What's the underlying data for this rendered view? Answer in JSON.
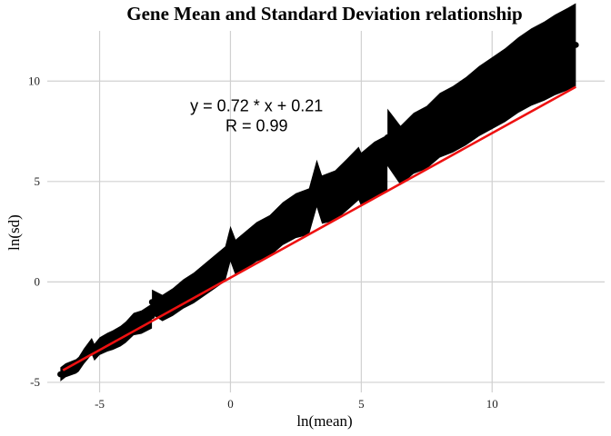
{
  "chart_data": {
    "type": "scatter",
    "title": "Gene Mean and Standard Deviation relationship",
    "xlabel": "ln(mean)",
    "ylabel": "ln(sd)",
    "xlim": [
      -7,
      14.3
    ],
    "ylim": [
      -5.5,
      12.5
    ],
    "x_ticks": [
      -5,
      0,
      5,
      10
    ],
    "y_ticks": [
      -5,
      0,
      5,
      10
    ],
    "grid": true,
    "legend": "none",
    "annotation": {
      "line1": "y = 0.72 * x + 0.21",
      "line2": "R = 0.99",
      "x": 1,
      "y": 8.4
    },
    "fit_line": {
      "slope": 0.72,
      "intercept": 0.21,
      "x_range": [
        -6.4,
        13.2
      ],
      "color": "#ee1111"
    },
    "point_color": "#000000",
    "points": [
      [
        -6.5,
        -4.6
      ],
      [
        -6.3,
        -4.4
      ],
      [
        -5.9,
        -4.2
      ],
      [
        -5.8,
        -4.1
      ],
      [
        -5.6,
        -3.7
      ],
      [
        -5.2,
        -3.5
      ],
      [
        -5.0,
        -3.2
      ],
      [
        -4.7,
        -3.0
      ],
      [
        -4.5,
        -2.9
      ],
      [
        -4.2,
        -2.7
      ],
      [
        -4.0,
        -2.5
      ],
      [
        -3.7,
        -2.1
      ],
      [
        -3.4,
        -2.0
      ],
      [
        -3.0,
        -1.7
      ],
      [
        -2.6,
        -1.3
      ],
      [
        -2.2,
        -1.0
      ],
      [
        -1.8,
        -0.6
      ],
      [
        -1.4,
        -0.3
      ],
      [
        -1.0,
        0.1
      ],
      [
        -0.6,
        0.5
      ],
      [
        -0.2,
        0.9
      ],
      [
        0.2,
        1.2
      ],
      [
        0.6,
        1.6
      ],
      [
        1.0,
        2.0
      ],
      [
        1.5,
        2.3
      ],
      [
        2.0,
        2.9
      ],
      [
        2.5,
        3.3
      ],
      [
        3.0,
        3.5
      ],
      [
        3.5,
        4.1
      ],
      [
        4.0,
        4.3
      ],
      [
        4.5,
        4.9
      ],
      [
        5.0,
        5.1
      ],
      [
        5.5,
        5.6
      ],
      [
        6.0,
        5.9
      ],
      [
        6.5,
        6.3
      ],
      [
        7.0,
        6.9
      ],
      [
        7.5,
        7.2
      ],
      [
        8.0,
        7.8
      ],
      [
        8.5,
        8.1
      ],
      [
        9.0,
        8.5
      ],
      [
        9.5,
        9.0
      ],
      [
        10.0,
        9.4
      ],
      [
        10.5,
        9.8
      ],
      [
        11.0,
        10.3
      ],
      [
        11.5,
        10.7
      ],
      [
        12.0,
        11.0
      ],
      [
        12.4,
        11.3
      ],
      [
        12.9,
        11.6
      ],
      [
        13.2,
        11.8
      ],
      [
        4.9,
        5.4
      ],
      [
        -5.3,
        -3.2
      ],
      [
        -3.0,
        -1.0
      ],
      [
        0.0,
        1.9
      ],
      [
        3.3,
        4.9
      ],
      [
        6.0,
        7.2
      ]
    ]
  }
}
